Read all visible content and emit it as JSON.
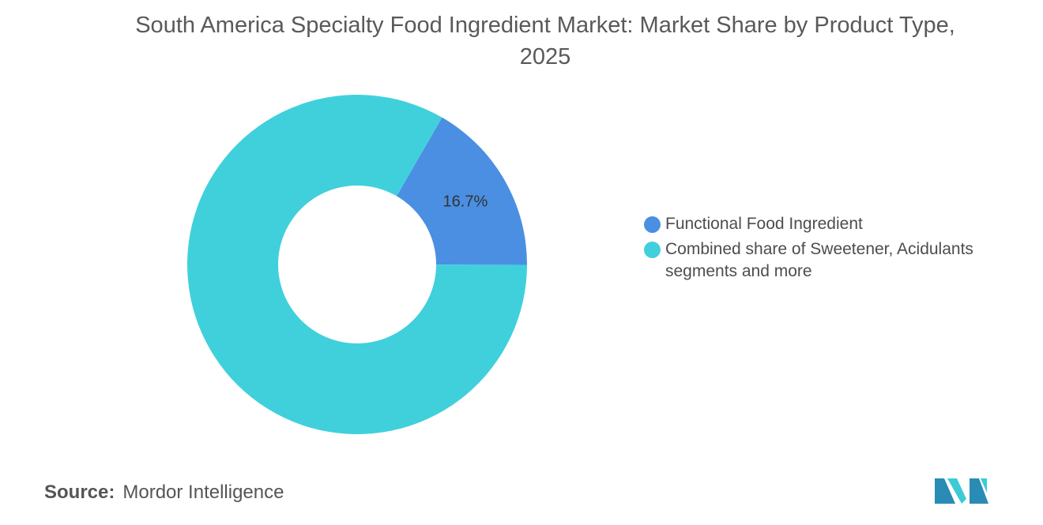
{
  "chart_data": {
    "type": "donut",
    "title": "South America Specialty Food Ingredient Market: Market Share by Product Type, 2025",
    "categories": [
      "Functional Food Ingredient",
      "Combined share of Sweetener, Acidulants segments and more"
    ],
    "values": [
      16.7,
      83.3
    ],
    "value_labels": [
      "16.7%",
      null
    ],
    "colors": [
      "#4a8fe2",
      "#40d0dc"
    ],
    "legend": "right"
  },
  "source_label": "Source:",
  "source": "Mordor Intelligence"
}
